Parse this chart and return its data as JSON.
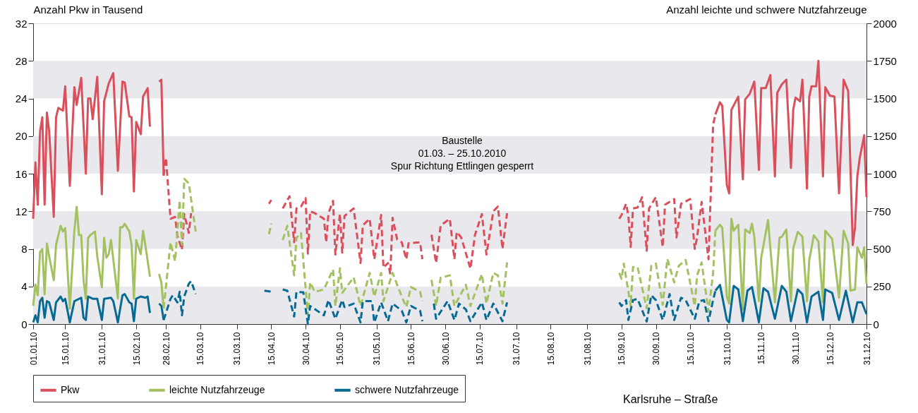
{
  "chart_data": {
    "type": "line",
    "ylabel": "Anzahl Pkw in Tausend",
    "y2label": "Anzahl leichte und schwere Nutzfahrzeuge",
    "annotations": [
      "Baustelle\n01.03. – 25.10.2010\nSpur Richtung Ettlingen gesperrt",
      "Karlsruhe – Straße"
    ],
    "xlim": [
      "2010-01-01",
      "2010-12-31"
    ],
    "xticks": [
      {
        "value": "2010-01-01",
        "label": "01.01.10"
      },
      {
        "value": "2010-01-15",
        "label": "15.01.10"
      },
      {
        "value": "2010-01-31",
        "label": "31.01.10"
      },
      {
        "value": "2010-02-15",
        "label": "15.02.10"
      },
      {
        "value": "2010-02-28",
        "label": "28.02.10"
      },
      {
        "value": "2010-03-15",
        "label": "15.03.10"
      },
      {
        "value": "2010-03-31",
        "label": "31.03.10"
      },
      {
        "value": "2010-04-15",
        "label": "15.04.10"
      },
      {
        "value": "2010-04-30",
        "label": "30.04.10"
      },
      {
        "value": "2010-05-15",
        "label": "15.05.10"
      },
      {
        "value": "2010-05-31",
        "label": "31.05.10"
      },
      {
        "value": "2010-06-15",
        "label": "15.06.10"
      },
      {
        "value": "2010-06-30",
        "label": "30.06.10"
      },
      {
        "value": "2010-07-15",
        "label": "15.07.10"
      },
      {
        "value": "2010-07-31",
        "label": "31.07.10"
      },
      {
        "value": "2010-08-15",
        "label": "15.08.10"
      },
      {
        "value": "2010-08-31",
        "label": "31.08.10"
      },
      {
        "value": "2010-09-15",
        "label": "15.09.10"
      },
      {
        "value": "2010-09-30",
        "label": "30.09.10"
      },
      {
        "value": "2010-10-15",
        "label": "15.10.10"
      },
      {
        "value": "2010-10-31",
        "label": "31.10.10"
      },
      {
        "value": "2010-11-15",
        "label": "15.11.10"
      },
      {
        "value": "2010-11-30",
        "label": "30.11.10"
      },
      {
        "value": "2010-12-15",
        "label": "15.12.10"
      },
      {
        "value": "2010-12-31",
        "label": "31.12.10"
      }
    ],
    "ylim": [
      0,
      32
    ],
    "yticks": [
      0,
      4,
      8,
      12,
      16,
      20,
      24,
      28,
      32
    ],
    "y2lim": [
      0,
      2000
    ],
    "y2ticks": [
      0,
      250,
      500,
      750,
      1000,
      1250,
      1500,
      1750,
      2000
    ],
    "bands": [
      {
        "axis": "y",
        "from": 0,
        "to": 4,
        "color": "#e9e9ed"
      },
      {
        "axis": "y",
        "from": 8,
        "to": 12,
        "color": "#e9e9ed"
      },
      {
        "axis": "y",
        "from": 16,
        "to": 20,
        "color": "#e9e9ed"
      },
      {
        "axis": "y",
        "from": 24,
        "to": 28,
        "color": "#e9e9ed"
      }
    ],
    "legend": "bottom",
    "series": [
      {
        "name": "Pkw",
        "color": "#d94f5c",
        "line_style": "solid",
        "x": [
          "2010-01-01",
          "2010-01-02",
          "2010-01-03",
          "2010-01-04",
          "2010-01-05",
          "2010-01-06",
          "2010-01-07",
          "2010-01-08",
          "2010-01-10",
          "2010-01-11",
          "2010-01-12",
          "2010-01-14",
          "2010-01-15",
          "2010-01-17",
          "2010-01-19",
          "2010-01-20",
          "2010-01-22",
          "2010-01-24",
          "2010-01-25",
          "2010-01-26",
          "2010-01-27",
          "2010-01-29",
          "2010-01-31",
          "2010-02-01",
          "2010-02-03",
          "2010-02-05",
          "2010-02-07",
          "2010-02-09",
          "2010-02-10",
          "2010-02-12",
          "2010-02-13",
          "2010-02-14",
          "2010-02-15",
          "2010-02-17",
          "2010-02-18",
          "2010-02-20",
          "2010-02-21",
          "2010-02-23",
          "2010-02-25",
          "2010-02-26",
          "2010-02-27",
          "2010-06-01",
          "2010-10-26",
          "2010-10-28",
          "2010-10-29",
          "2010-10-31",
          "2010-11-01",
          "2010-11-02",
          "2010-11-05",
          "2010-11-07",
          "2010-11-08",
          "2010-11-10",
          "2010-11-12",
          "2010-11-14",
          "2010-11-15",
          "2010-11-17",
          "2010-11-19",
          "2010-11-21",
          "2010-11-22",
          "2010-11-24",
          "2010-11-26",
          "2010-11-28",
          "2010-11-29",
          "2010-11-30",
          "2010-12-02",
          "2010-12-03",
          "2010-12-05",
          "2010-12-06",
          "2010-12-07",
          "2010-12-09",
          "2010-12-10",
          "2010-12-12",
          "2010-12-13",
          "2010-12-15",
          "2010-12-17",
          "2010-12-19",
          "2010-12-21",
          "2010-12-23",
          "2010-12-25",
          "2010-12-26",
          "2010-12-27",
          "2010-12-28",
          "2010-12-30",
          "2010-12-31"
        ],
        "values": [
          11.2,
          17.2,
          12.7,
          20.5,
          22.0,
          12.7,
          22.5,
          20.5,
          11.4,
          22.0,
          23.0,
          22.7,
          25.3,
          14.7,
          25.2,
          23.3,
          26.2,
          16.0,
          24.0,
          24.0,
          21.8,
          26.3,
          13.8,
          23.7,
          25.6,
          26.7,
          16.3,
          25.8,
          25.7,
          22.1,
          22.0,
          14.1,
          21.5,
          20.2,
          24.2,
          25.1,
          21.0,
          null,
          25.8,
          26.0,
          15.8,
          null,
          22.3,
          23.6,
          23.2,
          14.8,
          13.9,
          22.8,
          24.2,
          15.4,
          23.9,
          24.5,
          25.8,
          16.4,
          25.1,
          25.1,
          26.5,
          15.7,
          24.6,
          25.5,
          26.0,
          16.6,
          22.8,
          24.1,
          23.7,
          26.0,
          14.4,
          24.2,
          25.3,
          25.3,
          28.0,
          15.7,
          25.2,
          24.3,
          24.2,
          13.9,
          26.0,
          24.8,
          8.4,
          10.3,
          15.7,
          17.6,
          20.1,
          13.5
        ]
      },
      {
        "color": "#d94f5c",
        "line_style": "dashed",
        "x": [
          "2010-02-27",
          "2010-02-28",
          "2010-03-02",
          "2010-03-04",
          "2010-03-05",
          "2010-03-07",
          "2010-03-08",
          "2010-03-10",
          "2010-03-11",
          "2010-03-25",
          "2010-04-14",
          "2010-04-15",
          "2010-04-17",
          "2010-04-20",
          "2010-04-23",
          "2010-04-25",
          "2010-04-26",
          "2010-04-28",
          "2010-04-30",
          "2010-05-01",
          "2010-05-02",
          "2010-05-04",
          "2010-05-08",
          "2010-05-09",
          "2010-05-10",
          "2010-05-12",
          "2010-05-13",
          "2010-05-15",
          "2010-05-16",
          "2010-05-17",
          "2010-05-21",
          "2010-05-24",
          "2010-05-25",
          "2010-05-28",
          "2010-05-30",
          "2010-06-02",
          "2010-06-03",
          "2010-06-05",
          "2010-06-06",
          "2010-06-07",
          "2010-06-09",
          "2010-06-11",
          "2010-06-13",
          "2010-06-14",
          "2010-06-19",
          "2010-06-20",
          "2010-06-22",
          "2010-06-24",
          "2010-06-26",
          "2010-06-28",
          "2010-07-02",
          "2010-07-04",
          "2010-07-05",
          "2010-07-07",
          "2010-07-11",
          "2010-07-13",
          "2010-07-16",
          "2010-07-18",
          "2010-07-21",
          "2010-07-23",
          "2010-07-25",
          "2010-07-27",
          "2010-08-15",
          "2010-09-14",
          "2010-09-15",
          "2010-09-17",
          "2010-09-18",
          "2010-09-19",
          "2010-09-20",
          "2010-09-22",
          "2010-09-24",
          "2010-09-26",
          "2010-09-27",
          "2010-09-30",
          "2010-10-03",
          "2010-10-04",
          "2010-10-08",
          "2010-10-09",
          "2010-10-11",
          "2010-10-15",
          "2010-10-17",
          "2010-10-18",
          "2010-10-20",
          "2010-10-23",
          "2010-10-25",
          "2010-10-26"
        ],
        "values": [
          15.8,
          17.7,
          11.2,
          11.4,
          9.4,
          7.9,
          11.7,
          9.7,
          11.8,
          null,
          12.8,
          13.2,
          null,
          12.3,
          13.6,
          8.7,
          12.3,
          12.5,
          13.4,
          7.5,
          12.0,
          11.8,
          11.2,
          8.7,
          11.8,
          13.1,
          7.4,
          11.7,
          7.6,
          11.5,
          12.3,
          6.5,
          10.5,
          11.2,
          6.9,
          11.6,
          6.0,
          6.5,
          5.3,
          11.3,
          9.0,
          8.7,
          6.9,
          8.6,
          8.7,
          6.9,
          null,
          9.5,
          6.5,
          10.5,
          11.2,
          6.9,
          9.8,
          9.2,
          5.9,
          9.5,
          11.7,
          7.4,
          12.0,
          12.5,
          8.0,
          11.8,
          null,
          11.2,
          11.6,
          12.8,
          11.5,
          8.2,
          12.3,
          12.4,
          13.5,
          7.8,
          12.3,
          13.5,
          8.2,
          12.7,
          13.3,
          9.2,
          12.8,
          13.3,
          8.0,
          9.2,
          13.0,
          6.9,
          21.2,
          22.3
        ]
      },
      {
        "name": "leichte Nutzfahrzeuge",
        "color": "#a4c162",
        "line_style": "solid",
        "axis": "y2",
        "x": [
          "2010-01-01",
          "2010-01-02",
          "2010-01-03",
          "2010-01-04",
          "2010-01-05",
          "2010-01-06",
          "2010-01-07",
          "2010-01-08",
          "2010-01-10",
          "2010-01-11",
          "2010-01-13",
          "2010-01-14",
          "2010-01-15",
          "2010-01-17",
          "2010-01-19",
          "2010-01-20",
          "2010-01-21",
          "2010-01-22",
          "2010-01-23",
          "2010-01-24",
          "2010-01-25",
          "2010-01-26",
          "2010-01-28",
          "2010-01-29",
          "2010-01-31",
          "2010-02-01",
          "2010-02-02",
          "2010-02-03",
          "2010-02-04",
          "2010-02-07",
          "2010-02-08",
          "2010-02-09",
          "2010-02-10",
          "2010-02-12",
          "2010-02-13",
          "2010-02-14",
          "2010-02-15",
          "2010-02-17",
          "2010-02-18",
          "2010-02-19",
          "2010-02-21",
          "2010-02-23",
          "2010-02-25",
          "2010-02-26",
          "2010-02-27",
          "2010-06-01",
          "2010-10-26",
          "2010-10-28",
          "2010-10-29",
          "2010-10-31",
          "2010-11-01",
          "2010-11-02",
          "2010-11-03",
          "2010-11-05",
          "2010-11-07",
          "2010-11-08",
          "2010-11-10",
          "2010-11-11",
          "2010-11-12",
          "2010-11-14",
          "2010-11-15",
          "2010-11-18",
          "2010-11-21",
          "2010-11-23",
          "2010-11-24",
          "2010-11-26",
          "2010-11-28",
          "2010-11-29",
          "2010-12-01",
          "2010-12-03",
          "2010-12-05",
          "2010-12-06",
          "2010-12-08",
          "2010-12-10",
          "2010-12-12",
          "2010-12-13",
          "2010-12-16",
          "2010-12-19",
          "2010-12-21",
          "2010-12-23",
          "2010-12-24",
          "2010-12-26",
          "2010-12-27",
          "2010-12-29",
          "2010-12-30",
          "2010-12-31"
        ],
        "values": [
          121,
          263,
          192,
          479,
          498,
          197,
          535,
          450,
          291,
          526,
          653,
          615,
          638,
          103,
          620,
          779,
          592,
          592,
          291,
          169,
          573,
          592,
          615,
          450,
          244,
          573,
          441,
          465,
          559,
          169,
          643,
          643,
          667,
          615,
          526,
          169,
          559,
          465,
          620,
          526,
          315,
          null,
          333,
          277,
          103,
          null,
          621,
          660,
          640,
          183,
          136,
          700,
          620,
          660,
          97,
          629,
          605,
          668,
          580,
          152,
          441,
          691,
          144,
          574,
          580,
          629,
          152,
          503,
          613,
          582,
          152,
          425,
          590,
          550,
          144,
          621,
          566,
          175,
          621,
          535,
          222,
          230,
          511,
          441,
          511,
          269
        ]
      },
      {
        "color": "#a4c162",
        "line_style": "dashed",
        "axis": "y2",
        "x": [
          "2010-02-27",
          "2010-03-02",
          "2010-03-04",
          "2010-03-05",
          "2010-03-06",
          "2010-03-07",
          "2010-03-08",
          "2010-03-10",
          "2010-03-13",
          "2010-03-25",
          "2010-04-14",
          "2010-04-15",
          "2010-04-17",
          "2010-04-20",
          "2010-04-22",
          "2010-04-25",
          "2010-04-26",
          "2010-04-28",
          "2010-05-01",
          "2010-05-02",
          "2010-05-04",
          "2010-05-08",
          "2010-05-12",
          "2010-05-13",
          "2010-05-15",
          "2010-05-16",
          "2010-05-21",
          "2010-05-24",
          "2010-05-28",
          "2010-05-30",
          "2010-06-02",
          "2010-06-03",
          "2010-06-07",
          "2010-06-11",
          "2010-06-13",
          "2010-06-15",
          "2010-06-19",
          "2010-06-20",
          "2010-06-22",
          "2010-06-24",
          "2010-06-26",
          "2010-06-28",
          "2010-07-02",
          "2010-07-04",
          "2010-07-09",
          "2010-07-11",
          "2010-07-16",
          "2010-07-18",
          "2010-07-21",
          "2010-07-23",
          "2010-07-25",
          "2010-07-27",
          "2010-08-15",
          "2010-09-14",
          "2010-09-15",
          "2010-09-16",
          "2010-09-19",
          "2010-09-20",
          "2010-09-22",
          "2010-09-26",
          "2010-09-28",
          "2010-09-30",
          "2010-10-03",
          "2010-10-05",
          "2010-10-08",
          "2010-10-10",
          "2010-10-13",
          "2010-10-17",
          "2010-10-18",
          "2010-10-20",
          "2010-10-23",
          "2010-10-25",
          "2010-10-26"
        ],
        "values": [
          103,
          543,
          418,
          620,
          822,
          527,
          966,
          935,
          615,
          null,
          598,
          669,
          null,
          559,
          653,
          324,
          574,
          605,
          58,
          277,
          214,
          230,
          363,
          120,
          371,
          207,
          310,
          120,
          340,
          183,
          340,
          152,
          340,
          183,
          113,
          246,
          214,
          152,
          null,
          293,
          120,
          308,
          324,
          120,
          261,
          120,
          332,
          136,
          340,
          324,
          136,
          410,
          null,
          340,
          301,
          402,
          120,
          379,
          379,
          104,
          387,
          402,
          128,
          433,
          277,
          387,
          426,
          120,
          324,
          410,
          82,
          340,
          621
        ]
      },
      {
        "name": "schwere Nutzfahrzeuge",
        "color": "#086a93",
        "line_style": "solid",
        "axis": "y2",
        "x": [
          "2010-01-01",
          "2010-01-02",
          "2010-01-03",
          "2010-01-04",
          "2010-01-05",
          "2010-01-06",
          "2010-01-07",
          "2010-01-08",
          "2010-01-10",
          "2010-01-11",
          "2010-01-13",
          "2010-01-14",
          "2010-01-15",
          "2010-01-17",
          "2010-01-19",
          "2010-01-22",
          "2010-01-23",
          "2010-01-24",
          "2010-01-25",
          "2010-01-27",
          "2010-01-29",
          "2010-01-31",
          "2010-02-01",
          "2010-02-04",
          "2010-02-05",
          "2010-02-07",
          "2010-02-09",
          "2010-02-10",
          "2010-02-12",
          "2010-02-13",
          "2010-02-14",
          "2010-02-15",
          "2010-02-17",
          "2010-02-19",
          "2010-02-20",
          "2010-02-21",
          "2010-02-23",
          "2010-02-25",
          "2010-02-26",
          "2010-02-27",
          "2010-06-01",
          "2010-10-26",
          "2010-10-28",
          "2010-10-31",
          "2010-11-01",
          "2010-11-03",
          "2010-11-05",
          "2010-11-07",
          "2010-11-09",
          "2010-11-11",
          "2010-11-14",
          "2010-11-16",
          "2010-11-18",
          "2010-11-21",
          "2010-11-24",
          "2010-11-26",
          "2010-11-28",
          "2010-12-01",
          "2010-12-03",
          "2010-12-05",
          "2010-12-07",
          "2010-12-10",
          "2010-12-12",
          "2010-12-13",
          "2010-12-16",
          "2010-12-19",
          "2010-12-22",
          "2010-12-25",
          "2010-12-27",
          "2010-12-29",
          "2010-12-31"
        ],
        "values": [
          11,
          58,
          11,
          152,
          175,
          42,
          152,
          144,
          27,
          144,
          183,
          152,
          168,
          11,
          152,
          175,
          42,
          27,
          183,
          168,
          168,
          27,
          168,
          175,
          152,
          11,
          191,
          199,
          144,
          136,
          19,
          168,
          183,
          175,
          183,
          74,
          null,
          136,
          121,
          27,
          null,
          222,
          260,
          27,
          11,
          254,
          230,
          19,
          222,
          246,
          11,
          238,
          215,
          35,
          254,
          215,
          19,
          230,
          199,
          11,
          183,
          215,
          27,
          230,
          207,
          27,
          222,
          11,
          144,
          144,
          66
        ]
      },
      {
        "color": "#086a93",
        "line_style": "dashed",
        "axis": "y2",
        "x": [
          "2010-02-27",
          "2010-03-02",
          "2010-03-03",
          "2010-03-05",
          "2010-03-06",
          "2010-03-07",
          "2010-03-08",
          "2010-03-10",
          "2010-03-11",
          "2010-03-13",
          "2010-03-25",
          "2010-04-12",
          "2010-04-15",
          "2010-04-17",
          "2010-04-20",
          "2010-04-22",
          "2010-04-25",
          "2010-04-26",
          "2010-04-29",
          "2010-05-01",
          "2010-05-02",
          "2010-05-08",
          "2010-05-10",
          "2010-05-13",
          "2010-05-16",
          "2010-05-17",
          "2010-05-21",
          "2010-05-24",
          "2010-05-25",
          "2010-05-29",
          "2010-05-30",
          "2010-06-02",
          "2010-06-05",
          "2010-06-07",
          "2010-06-11",
          "2010-06-13",
          "2010-06-15",
          "2010-06-19",
          "2010-06-20",
          "2010-06-22",
          "2010-06-25",
          "2010-06-26",
          "2010-07-01",
          "2010-07-04",
          "2010-07-06",
          "2010-07-09",
          "2010-07-11",
          "2010-07-16",
          "2010-07-18",
          "2010-07-21",
          "2010-07-25",
          "2010-07-27",
          "2010-08-15",
          "2010-09-14",
          "2010-09-15",
          "2010-09-17",
          "2010-09-18",
          "2010-09-20",
          "2010-09-22",
          "2010-09-26",
          "2010-09-28",
          "2010-09-30",
          "2010-10-03",
          "2010-10-06",
          "2010-10-08",
          "2010-10-11",
          "2010-10-13",
          "2010-10-17",
          "2010-10-19",
          "2010-10-21",
          "2010-10-23",
          "2010-10-25",
          "2010-10-26"
        ],
        "values": [
          27,
          168,
          191,
          144,
          215,
          58,
          183,
          269,
          285,
          199,
          null,
          222,
          215,
          null,
          230,
          222,
          50,
          214,
          211,
          0,
          120,
          58,
          160,
          35,
          160,
          113,
          136,
          11,
          152,
          152,
          11,
          144,
          19,
          136,
          89,
          11,
          120,
          89,
          19,
          null,
          136,
          35,
          152,
          27,
          136,
          97,
          19,
          144,
          27,
          136,
          19,
          144,
          null,
          144,
          120,
          159,
          27,
          159,
          167,
          17,
          191,
          159,
          27,
          199,
          27,
          175,
          159,
          35,
          152,
          159,
          19,
          159,
          222
        ]
      }
    ]
  }
}
